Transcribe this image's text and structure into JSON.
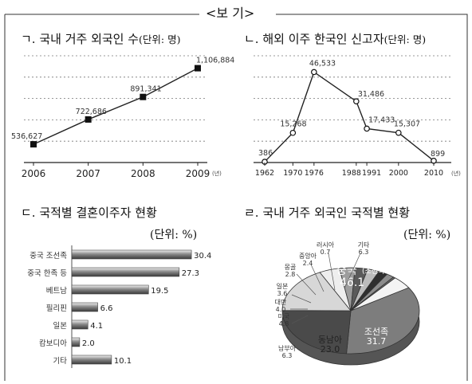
{
  "header": "<보 기>",
  "chart_data": [
    {
      "type": "line",
      "title": "ㄱ. 국내 거주 외국인 수",
      "unit": "(단위: 명)",
      "x": [
        "2006",
        "2007",
        "2008",
        "2009"
      ],
      "values": [
        536627,
        722686,
        891341,
        1106884
      ],
      "value_labels": [
        "536,627",
        "722,686",
        "891,341",
        "1,106,884"
      ],
      "x_suffix": "(년)",
      "ylim": [
        400000,
        1200000
      ],
      "grid": true
    },
    {
      "type": "line",
      "title": "ㄴ. 해외 이주 한국인 신고자",
      "unit": "(단위: 명)",
      "x": [
        "1962",
        "1970",
        "1976",
        "1988",
        "1991",
        "2000",
        "2010"
      ],
      "values": [
        386,
        15268,
        46533,
        31486,
        17433,
        15307,
        899
      ],
      "value_labels": [
        "386",
        "15,268",
        "46,533",
        "31,486",
        "17,433",
        "15,307",
        "899"
      ],
      "x_suffix": "(년)",
      "ylim": [
        0,
        50000
      ],
      "grid": true
    },
    {
      "type": "bar",
      "orientation": "horizontal",
      "title": "ㄷ. 국적별 결혼이주자 현황",
      "unit": "(단위: %)",
      "categories": [
        "중국 조선족",
        "중국 한족 등",
        "베트남",
        "필리핀",
        "일본",
        "캄보디아",
        "기타"
      ],
      "values": [
        30.4,
        27.3,
        19.5,
        6.6,
        4.1,
        2.0,
        10.1
      ],
      "xlim": [
        0,
        32
      ]
    },
    {
      "type": "pie",
      "title": "ㄹ. 국내 거주 외국인 국적별 현황",
      "unit": "(단위: %)",
      "slices": [
        {
          "label": "중국",
          "sublabel": "(조선족 포함)",
          "value": 46.1,
          "color": "#7d7d7d"
        },
        {
          "label": "조선족",
          "value": 31.7,
          "color": "#4a4a4a"
        },
        {
          "label": "동남아",
          "value": 23.0,
          "color": "#d7d7d7"
        },
        {
          "label": "남부아",
          "value": 6.3,
          "color": "#eeeeee"
        },
        {
          "label": "미국",
          "value": 4.8,
          "color": "#9d9d9d"
        },
        {
          "label": "대만",
          "value": 4.0,
          "color": "#5a5a5a"
        },
        {
          "label": "일본",
          "value": 3.6,
          "color": "#bcbcbc"
        },
        {
          "label": "몽골",
          "value": 2.8,
          "color": "#2f2f2f"
        },
        {
          "label": "중앙아",
          "value": 2.4,
          "color": "#8c8c8c"
        },
        {
          "label": "러시아",
          "value": 0.7,
          "color": "#6a6a6a"
        },
        {
          "label": "기타",
          "value": 6.3,
          "color": "#f4f4f4"
        }
      ]
    }
  ]
}
